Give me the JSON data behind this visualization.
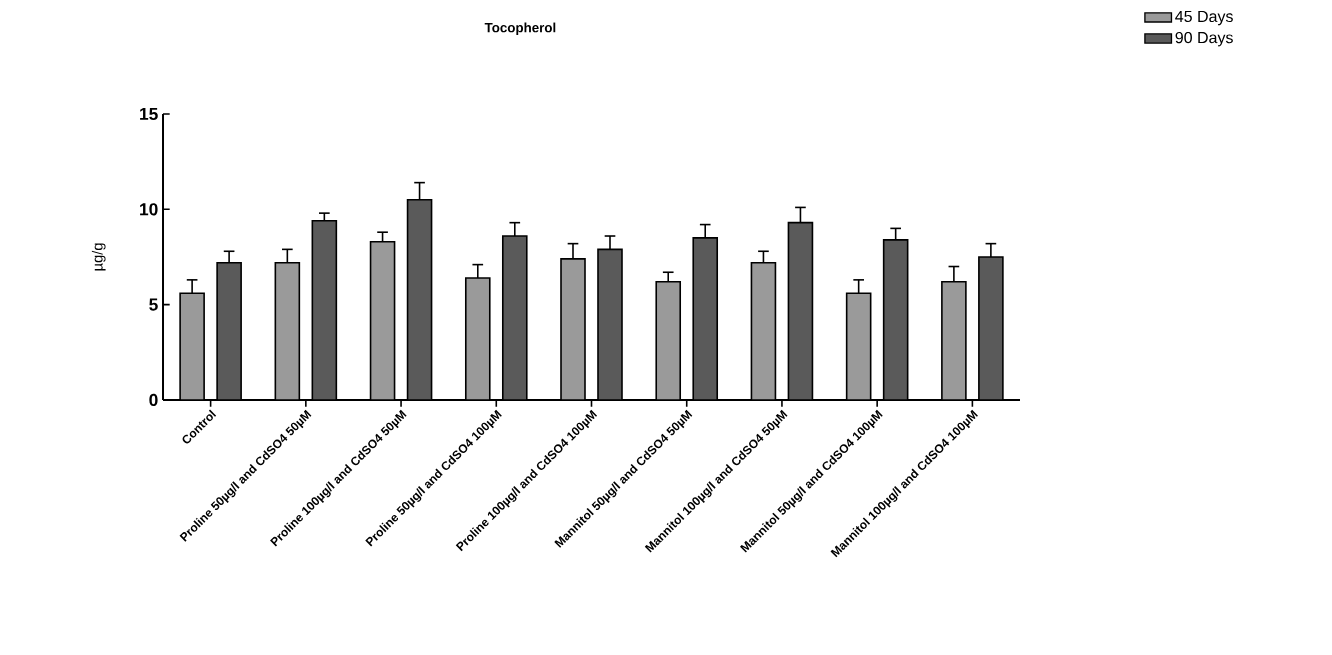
{
  "chart_data": {
    "type": "bar",
    "title": "Tocopherol",
    "ylabel": "µg/g",
    "categories": [
      "Control",
      "Proline 50µg/l and CdSO4 50µM",
      "Proline 100µg/l and CdSO4 50µM",
      "Proline 50µg/l and CdSO4 100µM",
      "Proline 100µg/l and CdSO4 100µM",
      "Mannitol 50µg/l and CdSO4 50µM",
      "Mannitol 100µg/l and CdSO4 50µM",
      "Mannitol 50µg/l and CdSO4 100µM",
      "Mannitol 100µg/l and CdSO4 100µM"
    ],
    "series": [
      {
        "name": "45 Days",
        "color": "#9a9a9a",
        "values": [
          5.6,
          7.2,
          8.3,
          6.4,
          7.4,
          6.2,
          7.2,
          5.6,
          6.2
        ],
        "errors": [
          0.7,
          0.7,
          0.5,
          0.7,
          0.8,
          0.5,
          0.6,
          0.7,
          0.8
        ]
      },
      {
        "name": "90 Days",
        "color": "#5a5a5a",
        "values": [
          7.2,
          9.4,
          10.5,
          8.6,
          7.9,
          8.5,
          9.3,
          8.4,
          7.5
        ],
        "errors": [
          0.6,
          0.4,
          0.9,
          0.7,
          0.7,
          0.7,
          0.8,
          0.6,
          0.7
        ]
      }
    ],
    "ylim": [
      0,
      15
    ],
    "yticks": [
      0,
      5,
      10,
      15
    ],
    "grid": false,
    "legend": "top right"
  }
}
